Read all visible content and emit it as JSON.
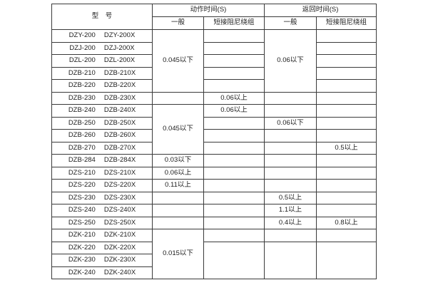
{
  "table": {
    "header": {
      "model": "型　号",
      "action_time": "动作时间(S)",
      "return_time": "返回时间(S)",
      "general": "一般",
      "damping": "短接阻尼绕组"
    },
    "rows": [
      {
        "model": [
          "DZY-200",
          "DZY-200X"
        ],
        "cells": [
          {
            "col": "action-general",
            "value": "0.045以下",
            "rowspan": 5
          },
          {
            "col": "action-damping",
            "value": ""
          },
          {
            "col": "return-general",
            "value": "0.06以下",
            "rowspan": 5
          },
          {
            "col": "return-damping",
            "value": ""
          }
        ]
      },
      {
        "model": [
          "DZJ-200",
          "DZJ-200X"
        ],
        "cells": [
          {
            "col": "action-damping",
            "value": ""
          },
          {
            "col": "return-damping",
            "value": ""
          }
        ]
      },
      {
        "model": [
          "DZL-200",
          "DZL-200X"
        ],
        "cells": [
          {
            "col": "action-damping",
            "value": ""
          },
          {
            "col": "return-damping",
            "value": ""
          }
        ]
      },
      {
        "model": [
          "DZB-210",
          "DZB-210X"
        ],
        "cells": [
          {
            "col": "action-damping",
            "value": ""
          },
          {
            "col": "return-damping",
            "value": ""
          }
        ]
      },
      {
        "model": [
          "DZB-220",
          "DZB-220X"
        ],
        "cells": [
          {
            "col": "action-damping",
            "value": ""
          },
          {
            "col": "return-damping",
            "value": ""
          }
        ]
      },
      {
        "model": [
          "DZB-230",
          "DZB-230X"
        ],
        "cells": [
          {
            "col": "action-general",
            "value": ""
          },
          {
            "col": "action-damping",
            "value": "0.06以上"
          },
          {
            "col": "return-general",
            "value": ""
          },
          {
            "col": "return-damping",
            "value": ""
          }
        ]
      },
      {
        "model": [
          "DZB-240",
          "DZB-240X"
        ],
        "cells": [
          {
            "col": "action-general",
            "value": "0.045以下",
            "rowspan": 4
          },
          {
            "col": "action-damping",
            "value": "0.06以上"
          },
          {
            "col": "return-general",
            "value": ""
          },
          {
            "col": "return-damping",
            "value": ""
          }
        ]
      },
      {
        "model": [
          "DZB-250",
          "DZB-250X"
        ],
        "cells": [
          {
            "col": "action-damping",
            "value": ""
          },
          {
            "col": "return-general",
            "value": "0.06以下"
          },
          {
            "col": "return-damping",
            "value": ""
          }
        ]
      },
      {
        "model": [
          "DZB-260",
          "DZB-260X"
        ],
        "cells": [
          {
            "col": "action-damping",
            "value": ""
          },
          {
            "col": "return-general",
            "value": ""
          },
          {
            "col": "return-damping",
            "value": ""
          }
        ]
      },
      {
        "model": [
          "DZB-270",
          "DZB-270X"
        ],
        "cells": [
          {
            "col": "action-damping",
            "value": ""
          },
          {
            "col": "return-general",
            "value": ""
          },
          {
            "col": "return-damping",
            "value": "0.5以上"
          }
        ]
      },
      {
        "model": [
          "DZB-284",
          "DZB-284X"
        ],
        "cells": [
          {
            "col": "action-general",
            "value": "0.03以下"
          },
          {
            "col": "action-damping",
            "value": ""
          },
          {
            "col": "return-general",
            "value": ""
          },
          {
            "col": "return-damping",
            "value": ""
          }
        ]
      },
      {
        "model": [
          "DZS-210",
          "DZS-210X"
        ],
        "cells": [
          {
            "col": "action-general",
            "value": "0.06以上"
          },
          {
            "col": "action-damping",
            "value": ""
          },
          {
            "col": "return-general",
            "value": ""
          },
          {
            "col": "return-damping",
            "value": ""
          }
        ]
      },
      {
        "model": [
          "DZS-220",
          "DZS-220X"
        ],
        "cells": [
          {
            "col": "action-general",
            "value": "0.11以上"
          },
          {
            "col": "action-damping",
            "value": ""
          },
          {
            "col": "return-general",
            "value": ""
          },
          {
            "col": "return-damping",
            "value": ""
          }
        ]
      },
      {
        "model": [
          "DZS-230",
          "DZS-230X"
        ],
        "cells": [
          {
            "col": "action-general",
            "value": ""
          },
          {
            "col": "action-damping",
            "value": ""
          },
          {
            "col": "return-general",
            "value": "0.5以上"
          },
          {
            "col": "return-damping",
            "value": ""
          }
        ]
      },
      {
        "model": [
          "DZS-240",
          "DZS-240X"
        ],
        "cells": [
          {
            "col": "action-general",
            "value": ""
          },
          {
            "col": "action-damping",
            "value": ""
          },
          {
            "col": "return-general",
            "value": "1.1以上"
          },
          {
            "col": "return-damping",
            "value": ""
          }
        ]
      },
      {
        "model": [
          "DZS-250",
          "DZS-250X"
        ],
        "cells": [
          {
            "col": "action-general",
            "value": ""
          },
          {
            "col": "action-damping",
            "value": ""
          },
          {
            "col": "return-general",
            "value": "0.4以上"
          },
          {
            "col": "return-damping",
            "value": "0.8以上"
          }
        ]
      },
      {
        "model": [
          "DZK-210",
          "DZK-210X"
        ],
        "cells": [
          {
            "col": "action-general",
            "value": "0.015以下",
            "rowspan": 4
          },
          {
            "col": "action-damping",
            "value": ""
          },
          {
            "col": "return-general",
            "value": ""
          },
          {
            "col": "return-damping",
            "value": ""
          }
        ]
      },
      {
        "model": [
          "DZK-220",
          "DZK-220X"
        ],
        "cells": [
          {
            "col": "action-damping",
            "value": "",
            "rowspan": 3
          },
          {
            "col": "return-general",
            "value": "",
            "rowspan": 3
          },
          {
            "col": "return-damping",
            "value": "",
            "rowspan": 3
          }
        ]
      },
      {
        "model": [
          "DZK-230",
          "DZK-230X"
        ],
        "cells": []
      },
      {
        "model": [
          "DZK-240",
          "DZK-240X"
        ],
        "cells": []
      }
    ]
  }
}
